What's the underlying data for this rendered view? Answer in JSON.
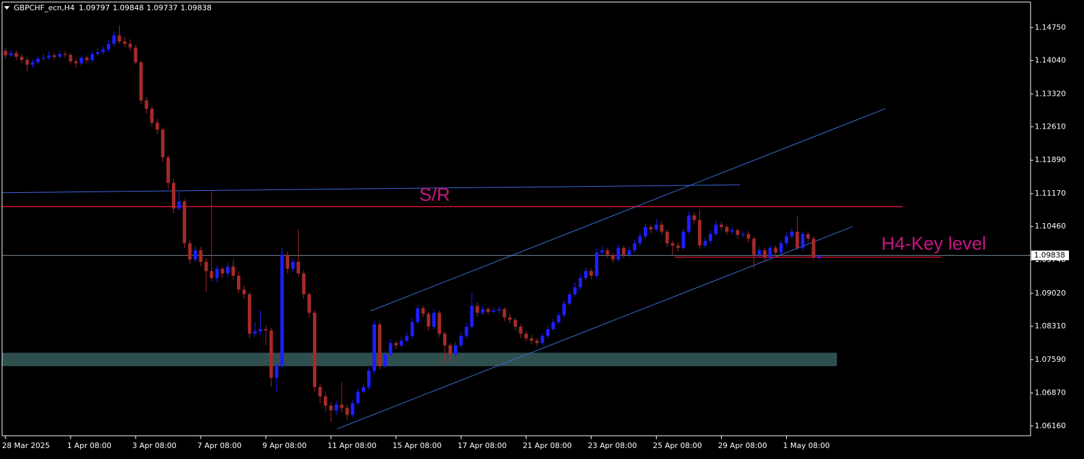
{
  "chart_data": {
    "type": "candlestick",
    "symbol": "GBPCHF_ecn,H4",
    "up_color": "#1e1eff",
    "down_color": "#a52a2a",
    "ylim": [
      1.0595,
      1.153
    ],
    "yticks": [
      {
        "value": 1.1475,
        "label": "1.14750"
      },
      {
        "value": 1.1404,
        "label": "1.14040"
      },
      {
        "value": 1.1332,
        "label": "1.13320"
      },
      {
        "value": 1.1261,
        "label": "1.12610"
      },
      {
        "value": 1.1189,
        "label": "1.11890"
      },
      {
        "value": 1.1117,
        "label": "1.11170"
      },
      {
        "value": 1.1046,
        "label": "1.10460"
      },
      {
        "value": 1.0974,
        "label": "1.09740"
      },
      {
        "value": 1.0902,
        "label": "1.09020"
      },
      {
        "value": 1.0831,
        "label": "1.08310"
      },
      {
        "value": 1.0759,
        "label": "1.07590"
      },
      {
        "value": 1.0687,
        "label": "1.06870"
      },
      {
        "value": 1.0616,
        "label": "1.06160"
      }
    ],
    "categories": [
      "28 Mar 2025",
      null,
      null,
      null,
      null,
      null,
      null,
      null,
      null,
      null,
      null,
      null,
      "1 Apr 08:00",
      null,
      null,
      null,
      null,
      null,
      null,
      null,
      null,
      null,
      null,
      null,
      "3 Apr 08:00",
      null,
      null,
      null,
      null,
      null,
      null,
      null,
      null,
      null,
      null,
      null,
      "7 Apr 08:00",
      null,
      null,
      null,
      null,
      null,
      null,
      null,
      null,
      null,
      null,
      null,
      "9 Apr 08:00",
      null,
      null,
      null,
      null,
      null,
      null,
      null,
      null,
      null,
      null,
      null,
      "11 Apr 08:00",
      null,
      null,
      null,
      null,
      null,
      null,
      null,
      null,
      null,
      null,
      null,
      "15 Apr 08:00",
      null,
      null,
      null,
      null,
      null,
      null,
      null,
      null,
      null,
      null,
      null,
      "17 Apr 08:00",
      null,
      null,
      null,
      null,
      null,
      null,
      null,
      null,
      null,
      null,
      null,
      "21 Apr 08:00",
      null,
      null,
      null,
      null,
      null,
      null,
      null,
      null,
      null,
      null,
      null,
      "23 Apr 08:00",
      null,
      null,
      null,
      null,
      null,
      null,
      null,
      null,
      null,
      null,
      null,
      "25 Apr 08:00",
      null,
      null,
      null,
      null,
      null,
      null,
      null,
      null,
      null,
      null,
      null,
      "29 Apr 08:00",
      null,
      null,
      null,
      null,
      null,
      null,
      null,
      null,
      null,
      null,
      null,
      "1 May 08:00",
      null,
      null,
      null,
      null,
      null,
      null
    ],
    "open": [
      1.1425,
      1.1415,
      1.142,
      1.1412,
      1.1405,
      1.1395,
      1.14,
      1.1408,
      1.141,
      1.1415,
      1.1412,
      1.1418,
      1.1416,
      1.1402,
      1.1398,
      1.141,
      1.1405,
      1.1418,
      1.1422,
      1.1428,
      1.144,
      1.1458,
      1.1445,
      1.144,
      1.1432,
      1.14,
      1.1318,
      1.13,
      1.127,
      1.1255,
      1.1195,
      1.114,
      1.1085,
      1.11,
      1.101,
      1.0975,
      1.0995,
      1.097,
      1.095,
      1.0935,
      1.0955,
      1.0945,
      1.096,
      1.094,
      1.091,
      1.09,
      1.0815,
      1.082,
      1.0825,
      1.0822,
      1.072,
      1.0745,
      1.0985,
      1.0955,
      1.097,
      1.0945,
      1.09,
      1.086,
      1.07,
      1.068,
      1.066,
      1.065,
      1.0662,
      1.0655,
      1.064,
      1.0665,
      1.069,
      1.07,
      1.0735,
      1.0835,
      1.0745,
      1.077,
      1.0795,
      1.079,
      1.08,
      1.081,
      1.084,
      1.087,
      1.0858,
      1.083,
      1.086,
      1.0815,
      1.079,
      1.077,
      1.079,
      1.081,
      1.083,
      1.0875,
      1.086,
      1.0868,
      1.0862,
      1.0865,
      1.0868,
      1.085,
      1.0845,
      1.083,
      1.0815,
      1.0805,
      1.08,
      1.0795,
      1.081,
      1.0825,
      1.084,
      1.0855,
      1.088,
      1.09,
      1.0915,
      1.0935,
      1.095,
      1.094,
      1.099,
      1.0995,
      1.0985,
      1.0975,
      1.1,
      1.0985,
      1.0995,
      1.101,
      1.1025,
      1.1045,
      1.104,
      1.105,
      1.1035,
      1.101,
      1.1005,
      1.1,
      1.1035,
      1.107,
      1.106,
      1.1005,
      1.1015,
      1.103,
      1.105,
      1.1045,
      1.1035,
      1.1038,
      1.1028,
      1.103,
      1.102,
      1.0985,
      1.0995,
      1.098,
      1.1,
      1.099,
      1.101,
      1.1025,
      1.1035,
      1.1,
      1.103,
      1.102,
      1.09797
    ],
    "high": [
      1.1432,
      1.1428,
      1.1426,
      1.1418,
      1.141,
      1.1406,
      1.1414,
      1.1418,
      1.1424,
      1.142,
      1.1425,
      1.1424,
      1.142,
      1.1408,
      1.1416,
      1.1414,
      1.1424,
      1.143,
      1.1434,
      1.1448,
      1.1466,
      1.148,
      1.1455,
      1.145,
      1.1438,
      1.1404,
      1.1325,
      1.1306,
      1.1278,
      1.126,
      1.12,
      1.1148,
      1.1122,
      1.1105,
      1.1018,
      1.1005,
      1.1002,
      1.0978,
      1.1122,
      1.0962,
      1.096,
      1.0968,
      1.0975,
      1.0948,
      1.0918,
      1.0905,
      1.084,
      1.0865,
      1.0832,
      1.0828,
      1.0752,
      1.1,
      1.0992,
      1.0978,
      1.104,
      1.0952,
      1.0905,
      1.0865,
      1.0708,
      1.069,
      1.0668,
      1.067,
      1.071,
      1.0662,
      1.0672,
      1.0698,
      1.0708,
      1.0742,
      1.0842,
      1.084,
      1.0778,
      1.0802,
      1.08,
      1.081,
      1.0818,
      1.0848,
      1.0878,
      1.0875,
      1.0862,
      1.0868,
      1.0865,
      1.082,
      1.0795,
      1.0798,
      1.0818,
      1.0838,
      1.0905,
      1.0882,
      1.0875,
      1.0872,
      1.0872,
      1.0874,
      1.0872,
      1.0858,
      1.085,
      1.0836,
      1.082,
      1.0812,
      1.0806,
      1.0816,
      1.0832,
      1.0848,
      1.0862,
      1.0888,
      1.0908,
      1.0925,
      1.0942,
      1.0958,
      1.0956,
      1.0998,
      1.1004,
      1.1,
      1.099,
      1.1008,
      1.1005,
      1.1002,
      1.1018,
      1.1032,
      1.1052,
      1.105,
      1.1062,
      1.1058,
      1.104,
      1.1015,
      1.1012,
      1.1042,
      1.1078,
      1.1076,
      1.1082,
      1.1022,
      1.1038,
      1.1058,
      1.1056,
      1.105,
      1.1045,
      1.1042,
      1.1036,
      1.1036,
      1.1025,
      1.1002,
      1.1,
      1.1006,
      1.1005,
      1.1016,
      1.1032,
      1.1042,
      1.1068,
      1.1036,
      1.1035,
      1.1025,
      1.09848
    ],
    "low": [
      1.1408,
      1.141,
      1.1405,
      1.1398,
      1.138,
      1.1388,
      1.1396,
      1.1402,
      1.1405,
      1.1406,
      1.1408,
      1.141,
      1.1395,
      1.1388,
      1.1392,
      1.1398,
      1.14,
      1.1412,
      1.1416,
      1.1422,
      1.1435,
      1.144,
      1.1432,
      1.1425,
      1.1395,
      1.131,
      1.129,
      1.1262,
      1.1245,
      1.1185,
      1.1128,
      1.1075,
      1.108,
      1.1,
      1.0965,
      1.0968,
      1.096,
      1.0905,
      1.0928,
      1.0925,
      1.0935,
      1.0938,
      1.0932,
      1.0902,
      1.089,
      1.0805,
      1.0808,
      1.0812,
      1.079,
      1.07,
      1.069,
      1.074,
      1.0945,
      1.0948,
      1.0938,
      1.089,
      1.085,
      1.069,
      1.0665,
      1.0648,
      1.0625,
      1.064,
      1.0645,
      1.063,
      1.0635,
      1.066,
      1.0685,
      1.0695,
      1.0728,
      1.0738,
      1.074,
      1.0765,
      1.0782,
      1.0785,
      1.0795,
      1.0805,
      1.0835,
      1.085,
      1.0822,
      1.0825,
      1.0808,
      1.075,
      1.0755,
      1.0762,
      1.0785,
      1.0805,
      1.0825,
      1.0852,
      1.0855,
      1.0856,
      1.0858,
      1.086,
      1.0842,
      1.0838,
      1.0822,
      1.0806,
      1.0798,
      1.0792,
      1.0788,
      1.079,
      1.0805,
      1.082,
      1.0835,
      1.085,
      1.0875,
      1.0895,
      1.091,
      1.093,
      1.0932,
      1.0935,
      1.0984,
      1.0978,
      1.0968,
      1.097,
      1.0978,
      1.098,
      1.099,
      1.1005,
      1.102,
      1.1032,
      1.1035,
      1.1028,
      1.1002,
      1.0985,
      1.0992,
      1.0995,
      1.103,
      1.1052,
      1.0998,
      1.1,
      1.101,
      1.1025,
      1.1038,
      1.1028,
      1.103,
      1.102,
      1.1022,
      1.1012,
      1.0955,
      1.0978,
      1.0972,
      1.0975,
      1.0983,
      1.0985,
      1.1005,
      1.102,
      1.0995,
      1.0995,
      1.1012,
      1.0975,
      1.09737
    ],
    "close": [
      1.1415,
      1.142,
      1.1412,
      1.1405,
      1.1395,
      1.14,
      1.1408,
      1.141,
      1.1415,
      1.1412,
      1.1418,
      1.1416,
      1.1402,
      1.1398,
      1.141,
      1.1405,
      1.1418,
      1.1422,
      1.1428,
      1.144,
      1.1458,
      1.1445,
      1.144,
      1.1432,
      1.14,
      1.1318,
      1.13,
      1.127,
      1.1255,
      1.1195,
      1.114,
      1.1085,
      1.11,
      1.101,
      1.0975,
      1.0995,
      1.097,
      1.095,
      1.0935,
      1.0955,
      1.0945,
      1.096,
      1.094,
      1.091,
      1.09,
      1.0815,
      1.082,
      1.0825,
      1.0822,
      1.072,
      1.0745,
      1.0985,
      1.0955,
      1.097,
      1.0945,
      1.09,
      1.086,
      1.07,
      1.068,
      1.066,
      1.065,
      1.0662,
      1.0655,
      1.064,
      1.0665,
      1.069,
      1.07,
      1.0735,
      1.0835,
      1.0745,
      1.077,
      1.0795,
      1.079,
      1.08,
      1.081,
      1.084,
      1.087,
      1.0858,
      1.083,
      1.086,
      1.0815,
      1.079,
      1.077,
      1.079,
      1.081,
      1.083,
      1.0875,
      1.086,
      1.0868,
      1.0862,
      1.0865,
      1.0868,
      1.085,
      1.0845,
      1.083,
      1.0815,
      1.0805,
      1.08,
      1.0795,
      1.081,
      1.0825,
      1.084,
      1.0855,
      1.088,
      1.09,
      1.0915,
      1.0935,
      1.095,
      1.094,
      1.099,
      1.0995,
      1.0985,
      1.0975,
      1.1,
      1.0985,
      1.0995,
      1.101,
      1.1025,
      1.1045,
      1.104,
      1.105,
      1.1035,
      1.101,
      1.1005,
      1.1,
      1.1035,
      1.107,
      1.106,
      1.1005,
      1.1015,
      1.103,
      1.105,
      1.1045,
      1.1035,
      1.1038,
      1.1028,
      1.103,
      1.102,
      1.0985,
      1.0995,
      1.098,
      1.1,
      1.099,
      1.101,
      1.1025,
      1.1035,
      1.1,
      1.103,
      1.102,
      1.098,
      1.09838
    ],
    "zones": [
      {
        "x": [
          -0.6,
          153.3
        ],
        "y": [
          1.0774,
          1.0745
        ],
        "color": "#2f4f4f"
      }
    ],
    "lines": [
      {
        "x": [
          -0.6,
          135.4
        ],
        "y": [
          1.1119,
          1.1136
        ],
        "color": "#4169e1"
      },
      {
        "x": [
          -0.6,
          165.4
        ],
        "y": [
          1.1089,
          1.1089
        ],
        "color": "#dc143c"
      },
      {
        "x": [
          61.2,
          156.2
        ],
        "y": [
          1.061,
          1.1046
        ],
        "color": "#3a6fd8"
      },
      {
        "x": [
          67.3,
          162.2
        ],
        "y": [
          1.0864,
          1.13
        ],
        "color": "#3a6fd8"
      },
      {
        "x": [
          123.4,
          172.6
        ],
        "y": [
          1.098,
          1.098
        ],
        "color": "#c8102e"
      }
    ],
    "annotations": [
      {
        "text": "S/R",
        "x": 76.3,
        "y": 1.1112,
        "color": "#c71585"
      },
      {
        "text": "H4-Key level",
        "x": 161.5,
        "y": 1.1007,
        "color": "#c71585"
      }
    ]
  }
}
